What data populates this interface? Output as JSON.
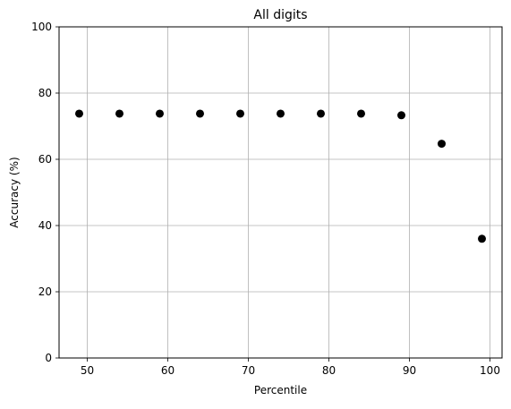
{
  "chart_data": {
    "type": "scatter",
    "title": "All digits",
    "xlabel": "Percentile",
    "ylabel": "Accuracy (%)",
    "xlim": [
      46.5,
      101.5
    ],
    "ylim": [
      0,
      100
    ],
    "xticks": [
      50,
      60,
      70,
      80,
      90,
      100
    ],
    "yticks": [
      0,
      20,
      40,
      60,
      80,
      100
    ],
    "grid": true,
    "marker_color": "#000000",
    "grid_color": "#b0b0b0",
    "series": [
      {
        "x": [
          49,
          54,
          59,
          64,
          69,
          74,
          79,
          84,
          89,
          94,
          99
        ],
        "y": [
          73.8,
          73.8,
          73.8,
          73.8,
          73.8,
          73.8,
          73.8,
          73.8,
          73.3,
          64.7,
          36.0
        ]
      }
    ]
  }
}
